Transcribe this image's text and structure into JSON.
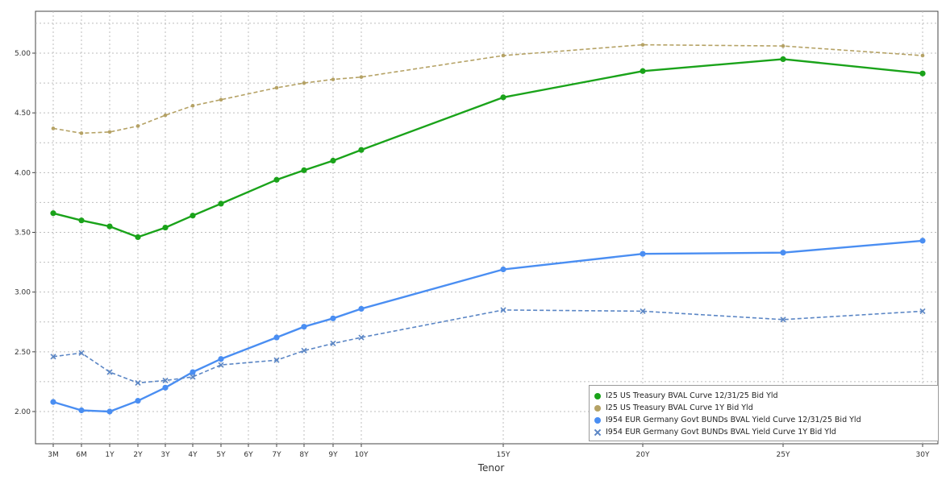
{
  "chart_data": {
    "type": "line",
    "title": "",
    "xlabel": "Tenor",
    "ylabel": "",
    "categories": [
      "3M",
      "6M",
      "1Y",
      "2Y",
      "3Y",
      "4Y",
      "5Y",
      "6Y",
      "7Y",
      "8Y",
      "9Y",
      "10Y",
      "15Y",
      "20Y",
      "25Y",
      "30Y"
    ],
    "x_positions": [
      0.25,
      0.5,
      1,
      2,
      3,
      4,
      5,
      6,
      7,
      8,
      9,
      10,
      15,
      20,
      25,
      30
    ],
    "ylim": [
      1.75,
      5.35
    ],
    "yticks": [
      "2.00",
      "2.50",
      "3.00",
      "3.50",
      "4.00",
      "4.50",
      "5.00"
    ],
    "grid": true,
    "legend_position": "bottom-right",
    "series": [
      {
        "name": "I25 US Treasury BVAL Curve 12/31/25 Bid Yld",
        "color": "#1aa31a",
        "marker": "dot",
        "line_style": "solid",
        "points": [
          [
            0.25,
            3.66
          ],
          [
            0.5,
            3.6
          ],
          [
            1,
            3.55
          ],
          [
            2,
            3.46
          ],
          [
            3,
            3.54
          ],
          [
            4,
            3.64
          ],
          [
            5,
            3.74
          ],
          [
            7,
            3.94
          ],
          [
            8,
            4.02
          ],
          [
            9,
            4.1
          ],
          [
            10,
            4.19
          ],
          [
            15,
            4.63
          ],
          [
            20,
            4.85
          ],
          [
            25,
            4.95
          ],
          [
            30,
            4.83
          ]
        ]
      },
      {
        "name": "I25 US Treasury BVAL Curve 1Y Bid Yld",
        "color": "#b5a265",
        "marker": "dot",
        "line_style": "dashed",
        "points": [
          [
            0.25,
            4.37
          ],
          [
            0.5,
            4.33
          ],
          [
            1,
            4.34
          ],
          [
            2,
            4.39
          ],
          [
            3,
            4.48
          ],
          [
            4,
            4.56
          ],
          [
            5,
            4.61
          ],
          [
            7,
            4.71
          ],
          [
            8,
            4.75
          ],
          [
            9,
            4.78
          ],
          [
            10,
            4.8
          ],
          [
            15,
            4.98
          ],
          [
            20,
            5.07
          ],
          [
            25,
            5.06
          ],
          [
            30,
            4.98
          ]
        ]
      },
      {
        "name": "I954 EUR Germany Govt BUNDs BVAL Yield Curve 12/31/25 Bid Yld",
        "color": "#4a8ef2",
        "marker": "dot",
        "line_style": "solid",
        "points": [
          [
            0.25,
            2.08
          ],
          [
            0.5,
            2.01
          ],
          [
            1,
            2.0
          ],
          [
            2,
            2.09
          ],
          [
            3,
            2.2
          ],
          [
            4,
            2.33
          ],
          [
            5,
            2.44
          ],
          [
            7,
            2.62
          ],
          [
            8,
            2.71
          ],
          [
            9,
            2.78
          ],
          [
            10,
            2.86
          ],
          [
            15,
            3.19
          ],
          [
            20,
            3.32
          ],
          [
            25,
            3.33
          ],
          [
            30,
            3.43
          ]
        ]
      },
      {
        "name": "I954 EUR Germany Govt BUNDs BVAL Yield Curve 1Y Bid Yld",
        "color": "#5b86c5",
        "marker": "x",
        "line_style": "dashed",
        "points": [
          [
            0.25,
            2.46
          ],
          [
            0.5,
            2.49
          ],
          [
            1,
            2.33
          ],
          [
            2,
            2.24
          ],
          [
            3,
            2.26
          ],
          [
            4,
            2.29
          ],
          [
            5,
            2.39
          ],
          [
            7,
            2.43
          ],
          [
            8,
            2.51
          ],
          [
            9,
            2.57
          ],
          [
            10,
            2.62
          ],
          [
            15,
            2.85
          ],
          [
            20,
            2.84
          ],
          [
            25,
            2.77
          ],
          [
            30,
            2.84
          ]
        ]
      }
    ]
  },
  "legend": {
    "items": [
      "I25 US Treasury BVAL Curve 12/31/25 Bid Yld",
      "I25 US Treasury BVAL Curve 1Y Bid Yld",
      "I954 EUR Germany Govt BUNDs BVAL Yield Curve 12/31/25 Bid Yld",
      "I954 EUR Germany Govt BUNDs BVAL Yield Curve 1Y Bid Yld"
    ]
  }
}
